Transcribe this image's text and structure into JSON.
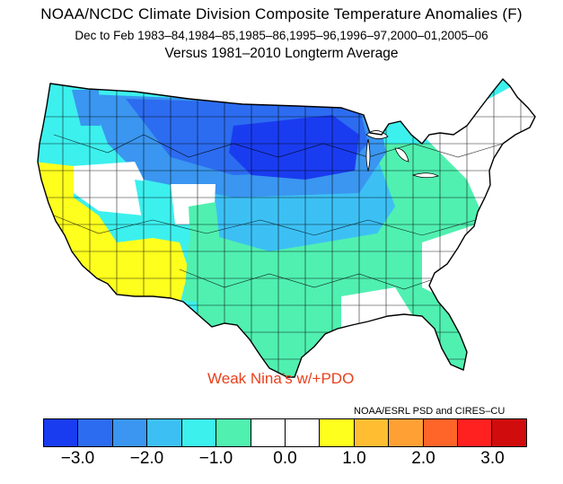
{
  "title": {
    "line1": "NOAA/NCDC Climate Division Composite Temperature Anomalies (F)",
    "line2": "Dec to Feb  1983–84,1984–85,1985–86,1995–96,1996–97,2000–01,2005–06",
    "line3": "Versus 1981–2010 Longterm Average"
  },
  "annotation": "Weak Nina’s w/+PDO",
  "credit": "NOAA/ESRL PSD and CIRES–CU",
  "legend": {
    "colors": [
      "#1a3cf0",
      "#2c6cf0",
      "#3a96f0",
      "#3cc0f4",
      "#3cf0ee",
      "#50f0b0",
      "#ffffff",
      "#ffffff",
      "#ffff1e",
      "#ffbe32",
      "#ffa034",
      "#ff6428",
      "#ff2020",
      "#d00c0c"
    ],
    "ticks": [
      "−3.0",
      "−2.0",
      "−1.0",
      "0.0",
      "1.0",
      "2.0",
      "3.0"
    ]
  },
  "map": {
    "region": "contiguous-united-states",
    "palette": {
      "deep_blue": "#1a3cf0",
      "blue": "#2c6cf0",
      "mid_blue": "#3a96f0",
      "light_blue": "#3cc0f4",
      "cyan": "#3cf0ee",
      "aqua_green": "#50f0b0",
      "white": "#ffffff",
      "yellow": "#ffff1e",
      "border": "#000000"
    }
  }
}
